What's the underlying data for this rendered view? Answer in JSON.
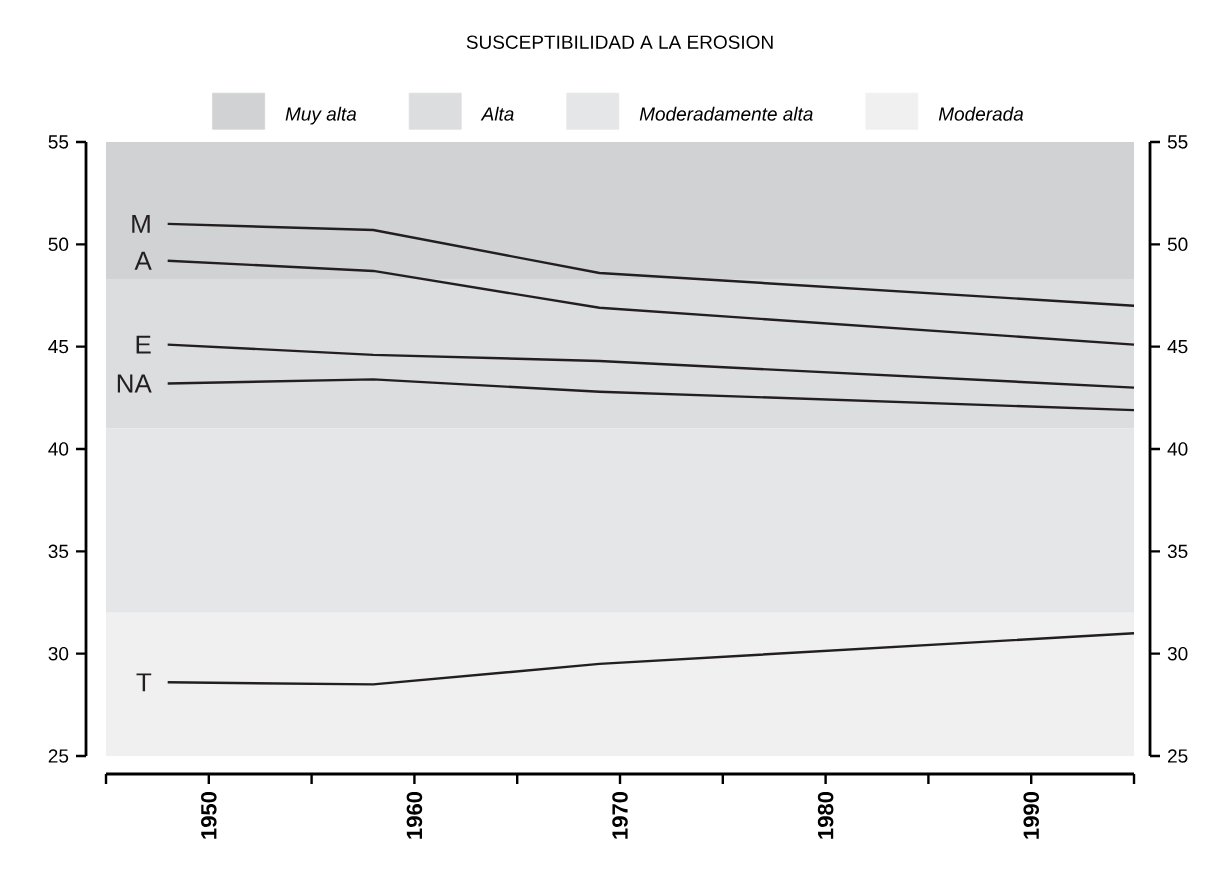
{
  "chart_data": {
    "type": "line",
    "title": "SUSCEPTIBILIDAD A LA EROSION",
    "x": [
      1948,
      1958,
      1969,
      1995
    ],
    "series": [
      {
        "name": "M",
        "color": "#231f20",
        "values": [
          51.0,
          50.7,
          48.6,
          47.0
        ]
      },
      {
        "name": "A",
        "color": "#231f20",
        "values": [
          49.2,
          48.7,
          46.9,
          45.1
        ]
      },
      {
        "name": "E",
        "color": "#231f20",
        "values": [
          45.1,
          44.6,
          44.3,
          43.0
        ]
      },
      {
        "name": "NA",
        "color": "#231f20",
        "values": [
          43.2,
          43.4,
          42.8,
          41.9
        ]
      },
      {
        "name": "T",
        "color": "#231f20",
        "values": [
          28.6,
          28.5,
          29.5,
          31.0
        ]
      }
    ],
    "bands": [
      {
        "axis": "y",
        "from": 48.3,
        "to": 55,
        "label": "*Muy alta*",
        "color": "#d1d2d4"
      },
      {
        "axis": "y",
        "from": 41,
        "to": 48.3,
        "label": "*Alta*",
        "color": "#dcdddf"
      },
      {
        "axis": "y",
        "from": 32,
        "to": 41,
        "label": "*Moderadamente alta*",
        "color": "#e5e6e8"
      },
      {
        "axis": "y",
        "from": 25,
        "to": 32,
        "label": "*Moderada*",
        "color": "#f0f0f0"
      }
    ],
    "xlim": [
      1945,
      1995
    ],
    "xticks": [
      {
        "value": 1945,
        "label": null
      },
      1950,
      {
        "value": 1955,
        "label": null
      },
      1960,
      {
        "value": 1965,
        "label": null
      },
      1970,
      {
        "value": 1975,
        "label": null
      },
      1980,
      {
        "value": 1985,
        "label": null
      },
      1990,
      {
        "value": 1995,
        "label": null
      }
    ],
    "ylim": [
      25,
      55
    ],
    "yticks": [
      25,
      30,
      35,
      40,
      45,
      50,
      55
    ],
    "y2lim": [
      25,
      55
    ],
    "y2ticks": [
      25,
      30,
      35,
      40,
      45,
      50,
      55
    ],
    "legend": "top"
  }
}
